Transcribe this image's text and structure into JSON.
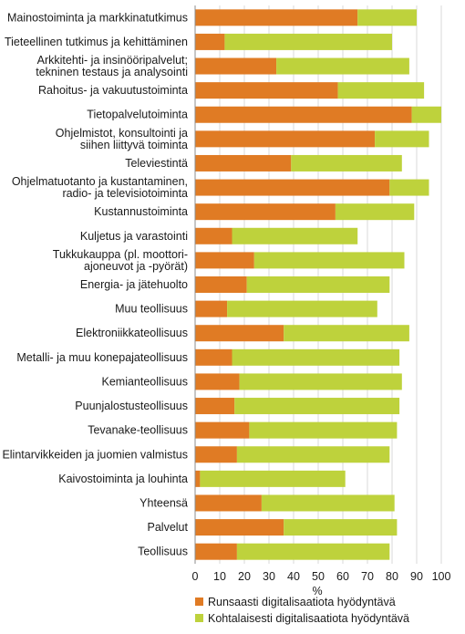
{
  "chart_data": {
    "type": "bar",
    "orientation": "horizontal",
    "stacked": true,
    "categories": [
      [
        "Mainostoiminta ja markkinatutkimus"
      ],
      [
        "Tieteellinen tutkimus ja kehittäminen"
      ],
      [
        "Arkkitehti- ja insinööripalvelut;",
        "tekninen testaus ja analysointi"
      ],
      [
        "Rahoitus- ja vakuutustoiminta"
      ],
      [
        "Tietopalvelutoiminta"
      ],
      [
        "Ohjelmistot, konsultointi ja",
        "siihen liittyvä toiminta"
      ],
      [
        "Televiestintä"
      ],
      [
        "Ohjelmatuotanto ja kustantaminen,",
        "radio- ja televisiotoiminta"
      ],
      [
        "Kustannustoiminta"
      ],
      [
        "Kuljetus ja varastointi"
      ],
      [
        "Tukkukauppa (pl. moottori-",
        "ajoneuvot ja -pyörät)"
      ],
      [
        "Energia- ja jätehuolto"
      ],
      [
        "Muu teollisuus"
      ],
      [
        "Elektroniikkateollisuus"
      ],
      [
        "Metalli- ja muu konepajateollisuus"
      ],
      [
        "Kemianteollisuus"
      ],
      [
        "Puunjalostusteollisuus"
      ],
      [
        "Tevanake-teollisuus"
      ],
      [
        "Elintarvikkeiden ja juomien valmistus"
      ],
      [
        "Kaivostoiminta ja louhinta"
      ],
      [
        "Yhteensä"
      ],
      [
        "Palvelut"
      ],
      [
        "Teollisuus"
      ]
    ],
    "series": [
      {
        "name": "Runsaasti digitalisaatiota hyödyntävä",
        "color": "#e07b24",
        "values": [
          66,
          12,
          33,
          58,
          88,
          73,
          39,
          79,
          57,
          15,
          24,
          21,
          13,
          36,
          15,
          18,
          16,
          22,
          17,
          2,
          27,
          36,
          17
        ]
      },
      {
        "name": "Kohtalaisesti digitalisaatiota hyödyntävä",
        "color": "#bed23c",
        "values": [
          24,
          68,
          54,
          35,
          12,
          22,
          45,
          16,
          32,
          51,
          61,
          58,
          61,
          51,
          68,
          66,
          67,
          60,
          62,
          59,
          54,
          46,
          62
        ]
      }
    ],
    "xlabel": "%",
    "xlim": [
      0,
      100
    ],
    "xticks": [
      0,
      10,
      20,
      30,
      40,
      50,
      60,
      70,
      80,
      90,
      100
    ],
    "grid": "vertical",
    "legend_position": "bottom"
  }
}
